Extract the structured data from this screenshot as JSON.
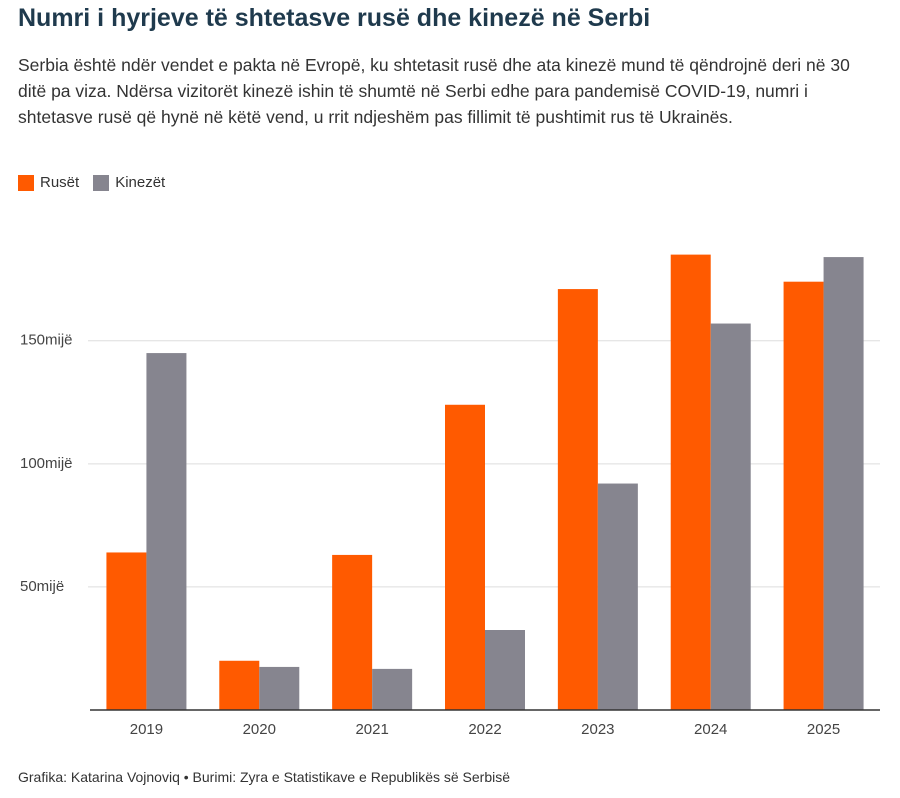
{
  "chart_data": {
    "type": "bar",
    "title": "Numri i hyrjeve të shtetasve rusë dhe kinezë në Serbi",
    "subtitle": "Serbia është ndër vendet e pakta në Evropë, ku shtetasit rusë dhe ata kinezë mund të qëndrojnë deri në 30 ditë pa viza. Ndërsa vizitorët kinezë ishin të shumtë në Serbi edhe para pandemisë COVID-19, numri i shtetasve rusë që hynë në këtë vend, u rrit ndjeshëm pas fillimit të pushtimit rus të Ukrainës.",
    "categories": [
      "2019",
      "2020",
      "2021",
      "2022",
      "2023",
      "2024",
      "2025"
    ],
    "series": [
      {
        "name": "Rusët",
        "color": "#ff5a00",
        "values": [
          64,
          20,
          63,
          124,
          171,
          185,
          174
        ]
      },
      {
        "name": "Kinezët",
        "color": "#86858f",
        "values": [
          145,
          17.5,
          16.7,
          32.5,
          92,
          157,
          184
        ]
      }
    ],
    "ylim": [
      0,
      195
    ],
    "yticks": [
      {
        "value": 50,
        "label": "50mijë"
      },
      {
        "value": 100,
        "label": "100mijë"
      },
      {
        "value": 150,
        "label": "150mijë"
      }
    ],
    "grid": true,
    "source": "Grafika: Katarina Vojnoviq • Burimi: Zyra e Statistikave e Republikës së Serbisë"
  }
}
